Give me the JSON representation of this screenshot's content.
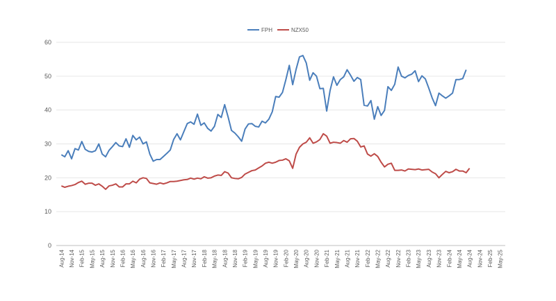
{
  "chart_data": {
    "type": "line",
    "title": "",
    "xlabel": "",
    "ylabel": "",
    "ylim": [
      0,
      60
    ],
    "yticks": [
      0,
      10,
      20,
      30,
      40,
      50,
      60
    ],
    "grid": "horizontal",
    "legend_position": "top-center",
    "x_tick_labels": [
      "Aug-14",
      "Nov-14",
      "Feb-15",
      "May-15",
      "Aug-15",
      "Nov-15",
      "Feb-16",
      "May-16",
      "Aug-16",
      "Nov-16",
      "Feb-17",
      "May-17",
      "Aug-17",
      "Nov-17",
      "Feb-18",
      "May-18",
      "Aug-18",
      "Nov-18",
      "Feb-19",
      "May-19",
      "Aug-19",
      "Nov-19",
      "Feb-20",
      "May-20",
      "Aug-20",
      "Nov-20",
      "Feb-21",
      "May-21",
      "Aug-21",
      "Nov-21",
      "Feb-22",
      "May-22",
      "Aug-22",
      "Nov-22",
      "Feb-23",
      "May-23",
      "Aug-23",
      "Nov-23",
      "Feb-24",
      "May-24",
      "Aug-24",
      "Nov-24",
      "Feb-25",
      "May-25"
    ],
    "x_start": "Aug-14",
    "x_interval": "monthly",
    "series": [
      {
        "name": "FPH",
        "color": "#4a7ebb",
        "values": [
          26.8,
          26.2,
          28.0,
          25.6,
          28.6,
          28.2,
          30.7,
          28.4,
          27.8,
          27.6,
          28.0,
          30.0,
          27.0,
          26.2,
          28.1,
          29.2,
          30.4,
          29.4,
          29.2,
          31.5,
          29.0,
          32.5,
          31.2,
          32.0,
          30.0,
          30.6,
          27.0,
          24.9,
          25.4,
          25.4,
          26.3,
          27.2,
          28.2,
          31.3,
          33.0,
          31.2,
          33.6,
          36.0,
          36.5,
          35.8,
          38.8,
          35.5,
          36.2,
          34.6,
          33.8,
          35.2,
          38.7,
          37.8,
          41.6,
          38.0,
          34.0,
          33.2,
          32.1,
          30.8,
          34.4,
          35.9,
          36.0,
          35.2,
          35.0,
          36.7,
          36.2,
          37.3,
          39.5,
          44.0,
          43.8,
          45.2,
          49.0,
          53.2,
          47.5,
          52.0,
          55.7,
          56.1,
          53.9,
          48.8,
          51.0,
          50.0,
          46.3,
          46.4,
          39.7,
          45.8,
          49.8,
          47.3,
          49.0,
          49.8,
          51.9,
          50.3,
          48.5,
          49.6,
          49.0,
          41.4,
          41.2,
          42.8,
          37.3,
          41.0,
          38.4,
          39.9,
          46.9,
          45.8,
          47.6,
          52.7,
          50.0,
          49.5,
          50.2,
          50.6,
          51.6,
          48.4,
          50.1,
          49.2,
          46.5,
          43.6,
          41.3,
          45.0,
          44.2,
          43.5,
          44.2,
          45.0,
          49.0,
          49.0,
          49.3,
          51.9
        ]
      },
      {
        "name": "NZX50",
        "color": "#be4b48",
        "values": [
          17.6,
          17.2,
          17.5,
          17.7,
          18.0,
          18.6,
          19.0,
          18.1,
          18.4,
          18.4,
          17.8,
          18.2,
          17.5,
          16.6,
          17.6,
          17.8,
          18.2,
          17.3,
          17.3,
          18.2,
          18.2,
          19.0,
          18.5,
          19.6,
          20.0,
          19.8,
          18.5,
          18.3,
          18.1,
          18.5,
          18.2,
          18.5,
          18.9,
          18.9,
          19.0,
          19.2,
          19.4,
          19.5,
          19.9,
          19.6,
          19.9,
          19.7,
          20.3,
          19.9,
          20.0,
          20.5,
          20.8,
          20.7,
          21.8,
          21.4,
          20.0,
          19.8,
          19.7,
          20.1,
          21.1,
          21.6,
          22.1,
          22.3,
          22.9,
          23.5,
          24.3,
          24.6,
          24.3,
          24.6,
          25.1,
          25.2,
          25.6,
          25.0,
          22.8,
          27.0,
          29.0,
          30.0,
          30.5,
          31.8,
          30.2,
          30.6,
          31.3,
          33.0,
          32.3,
          30.2,
          30.5,
          30.4,
          30.2,
          31.0,
          30.5,
          31.5,
          31.6,
          30.8,
          29.1,
          29.4,
          27.0,
          26.4,
          27.1,
          26.3,
          24.6,
          23.2,
          24.0,
          24.3,
          22.2,
          22.2,
          22.3,
          22.0,
          22.6,
          22.5,
          22.4,
          22.6,
          22.3,
          22.4,
          22.5,
          21.7,
          21.2,
          20.0,
          21.0,
          21.9,
          21.5,
          21.8,
          22.5,
          22.0,
          22.0,
          21.5,
          22.8
        ]
      }
    ]
  }
}
